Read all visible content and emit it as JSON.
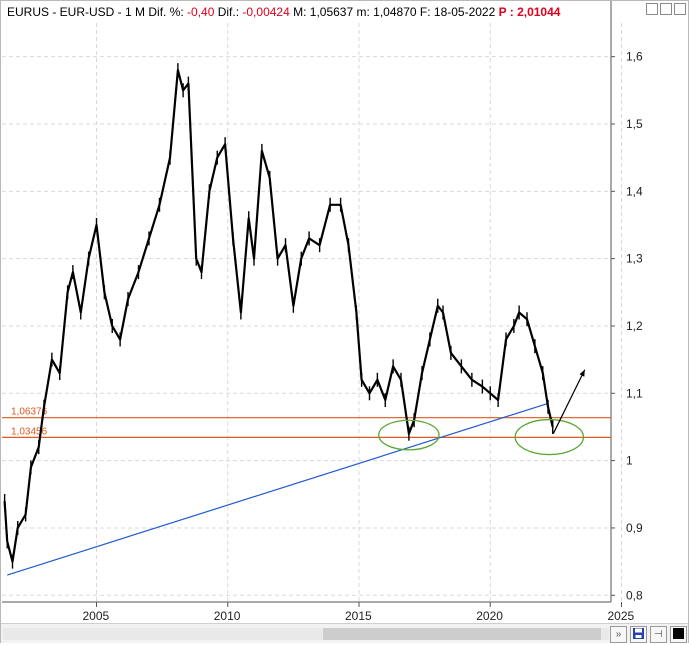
{
  "header": {
    "symbol": "EURUS - EUR-USD -",
    "period": "1 M",
    "dif_pct_label": "Dif. %:",
    "dif_pct_value": "-0,40",
    "dif_label": "Dif.:",
    "dif_value": "-0,00424",
    "max_label": "M:",
    "max_value": "1,05637",
    "min_label": "m:",
    "min_value": "1,04870",
    "date_label": "F:",
    "date_value": "18-05-2022",
    "p_label": "P :",
    "p_value": "2,01044"
  },
  "colors": {
    "price": "#000000",
    "support_lines": "#e05a1e",
    "trendline": "#1f5ad1",
    "ellipses": "#5aa832",
    "grid": "#d9d9d9",
    "negative": "#e0001b"
  },
  "chart_data": {
    "type": "line",
    "title": "EURUS - EUR-USD",
    "xlim": [
      2001.4,
      2024.6
    ],
    "ylim": [
      0.79,
      1.65
    ],
    "grid": true,
    "x_ticks": [
      "2005",
      "2010",
      "2015",
      "2020",
      "2025"
    ],
    "y_ticks": [
      "0,8",
      "0,9",
      "1",
      "1,1",
      "1,2",
      "1,3",
      "1,4",
      "1,5",
      "1,6"
    ],
    "series": [
      {
        "name": "EUR-USD",
        "x": [
          2001.5,
          2001.6,
          2001.8,
          2002.0,
          2002.3,
          2002.5,
          2002.8,
          2003.0,
          2003.3,
          2003.6,
          2003.9,
          2004.1,
          2004.4,
          2004.7,
          2005.0,
          2005.3,
          2005.6,
          2005.9,
          2006.2,
          2006.6,
          2007.0,
          2007.4,
          2007.8,
          2008.1,
          2008.3,
          2008.5,
          2008.8,
          2009.0,
          2009.3,
          2009.6,
          2009.9,
          2010.2,
          2010.5,
          2010.8,
          2011.0,
          2011.3,
          2011.6,
          2011.9,
          2012.2,
          2012.5,
          2012.8,
          2013.1,
          2013.5,
          2013.9,
          2014.3,
          2014.6,
          2014.9,
          2015.1,
          2015.4,
          2015.7,
          2016.0,
          2016.3,
          2016.6,
          2016.9,
          2017.1,
          2017.4,
          2017.7,
          2018.0,
          2018.2,
          2018.5,
          2018.9,
          2019.3,
          2019.7,
          2020.0,
          2020.3,
          2020.6,
          2020.9,
          2021.1,
          2021.4,
          2021.7,
          2022.0,
          2022.2,
          2022.38
        ],
        "y": [
          0.94,
          0.88,
          0.85,
          0.9,
          0.92,
          0.99,
          1.02,
          1.08,
          1.15,
          1.13,
          1.25,
          1.28,
          1.22,
          1.3,
          1.35,
          1.25,
          1.2,
          1.18,
          1.24,
          1.28,
          1.33,
          1.38,
          1.45,
          1.58,
          1.55,
          1.56,
          1.3,
          1.28,
          1.4,
          1.45,
          1.47,
          1.33,
          1.22,
          1.36,
          1.3,
          1.46,
          1.42,
          1.3,
          1.32,
          1.23,
          1.3,
          1.33,
          1.32,
          1.38,
          1.38,
          1.32,
          1.22,
          1.12,
          1.1,
          1.12,
          1.09,
          1.14,
          1.12,
          1.04,
          1.06,
          1.13,
          1.18,
          1.23,
          1.22,
          1.16,
          1.14,
          1.12,
          1.11,
          1.1,
          1.09,
          1.18,
          1.2,
          1.22,
          1.21,
          1.17,
          1.13,
          1.08,
          1.05
        ]
      }
    ],
    "annotations": {
      "support_lines": [
        {
          "value": 1.06376,
          "label": "1,06376"
        },
        {
          "value": 1.03456,
          "label": "1,03456"
        }
      ],
      "trendline": {
        "x": [
          2001.6,
          2022.2
        ],
        "y": [
          0.83,
          1.085
        ]
      },
      "ellipses": [
        {
          "cx": 2016.9,
          "cy": 1.038,
          "rx": 1.15,
          "ry": 0.022
        },
        {
          "cx": 2022.25,
          "cy": 1.035,
          "rx": 1.3,
          "ry": 0.026
        }
      ],
      "arrow": {
        "x": [
          2022.4,
          2023.6
        ],
        "y": [
          1.04,
          1.135
        ]
      }
    }
  },
  "bottom": {
    "save_icon": "save-icon",
    "pin_icon": "pin-icon",
    "color_icon": "black-square-icon",
    "scroll_right_icon": "double-chevron-right-icon"
  }
}
